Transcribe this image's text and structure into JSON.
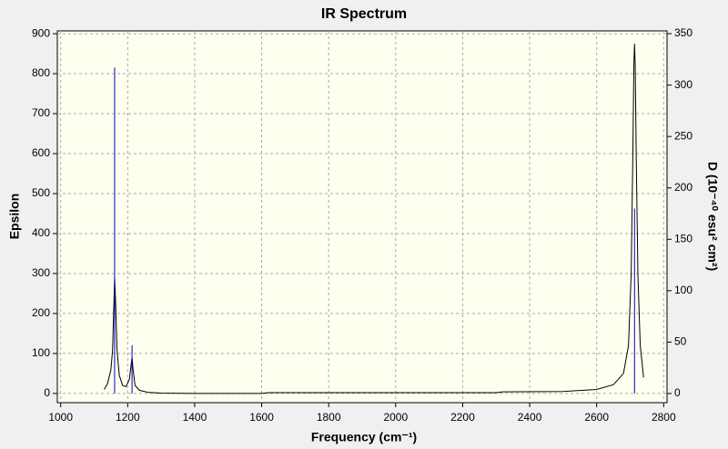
{
  "chart_data": {
    "type": "line",
    "title": "IR Spectrum",
    "x_label": "Frequency (cm⁻¹)",
    "y_label": "Epsilon",
    "y2_label": "D (10⁻⁴⁰ esu² cm²)",
    "xlim": [
      990,
      2810
    ],
    "xticks": [
      1000,
      1200,
      1400,
      1600,
      1800,
      2000,
      2200,
      2400,
      2600,
      2800
    ],
    "ylim": [
      -23,
      907
    ],
    "yticks": [
      0,
      100,
      200,
      300,
      400,
      500,
      600,
      700,
      800,
      900
    ],
    "y2lim": [
      -8.9,
      352.7
    ],
    "y2ticks": [
      0,
      50,
      100,
      150,
      200,
      250,
      300,
      350
    ],
    "grid": true,
    "series": [
      {
        "type": "line",
        "color": "#000000",
        "x": [
          1130,
          1140,
          1150,
          1155,
          1158,
          1161,
          1164,
          1168,
          1175,
          1185,
          1195,
          1205,
          1210,
          1213,
          1216,
          1222,
          1235,
          1260,
          1300,
          1400,
          1600,
          1620,
          1800,
          2000,
          2300,
          2320,
          2500,
          2600,
          2650,
          2680,
          2695,
          2703,
          2708,
          2711,
          2713,
          2715,
          2718,
          2723,
          2730,
          2740
        ],
        "values": [
          10,
          25,
          60,
          110,
          200,
          290,
          230,
          110,
          45,
          20,
          17,
          35,
          70,
          90,
          60,
          20,
          8,
          3,
          1,
          0,
          0,
          2,
          2,
          2,
          2,
          4,
          5,
          10,
          22,
          50,
          120,
          300,
          600,
          820,
          875,
          820,
          600,
          300,
          120,
          40
        ]
      },
      {
        "type": "stick",
        "color": "#0000cc",
        "axis": "y2",
        "x": [
          1161,
          1213,
          2713
        ],
        "values": [
          317,
          47,
          180
        ]
      }
    ]
  }
}
